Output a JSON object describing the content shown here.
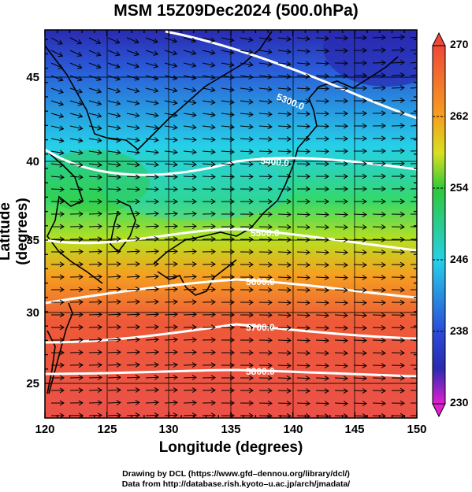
{
  "title": "MSM 15Z09Dec2024 (500.0hPa)",
  "axes": {
    "xlabel": "Longitude (degrees)",
    "ylabel": "Latitude  (degrees)",
    "xticks": [
      "120",
      "125",
      "130",
      "135",
      "140",
      "145",
      "150"
    ],
    "yticks": [
      "25",
      "30",
      "35",
      "40",
      "45"
    ]
  },
  "colorbar": {
    "labels": [
      "270",
      "262",
      "254",
      "246",
      "238",
      "230"
    ]
  },
  "contour_labels": [
    "5300.0",
    "5400.0",
    "5500.0",
    "5600.0",
    "5700.0",
    "5800.0"
  ],
  "credits": [
    "Drawing by DCL (https://www.gfd–dennou.org/library/dcl/)",
    "Data from http://database.rish.kyoto–u.ac.jp/arch/jmadata/"
  ],
  "colors": {
    "warm": "#e8463a",
    "orange": "#f5a020",
    "green": "#2fc83a",
    "cyan": "#26d0e8",
    "blue": "#2a5ad8",
    "deep_blue": "#2a2ab0",
    "contour": "#ffffff"
  }
}
